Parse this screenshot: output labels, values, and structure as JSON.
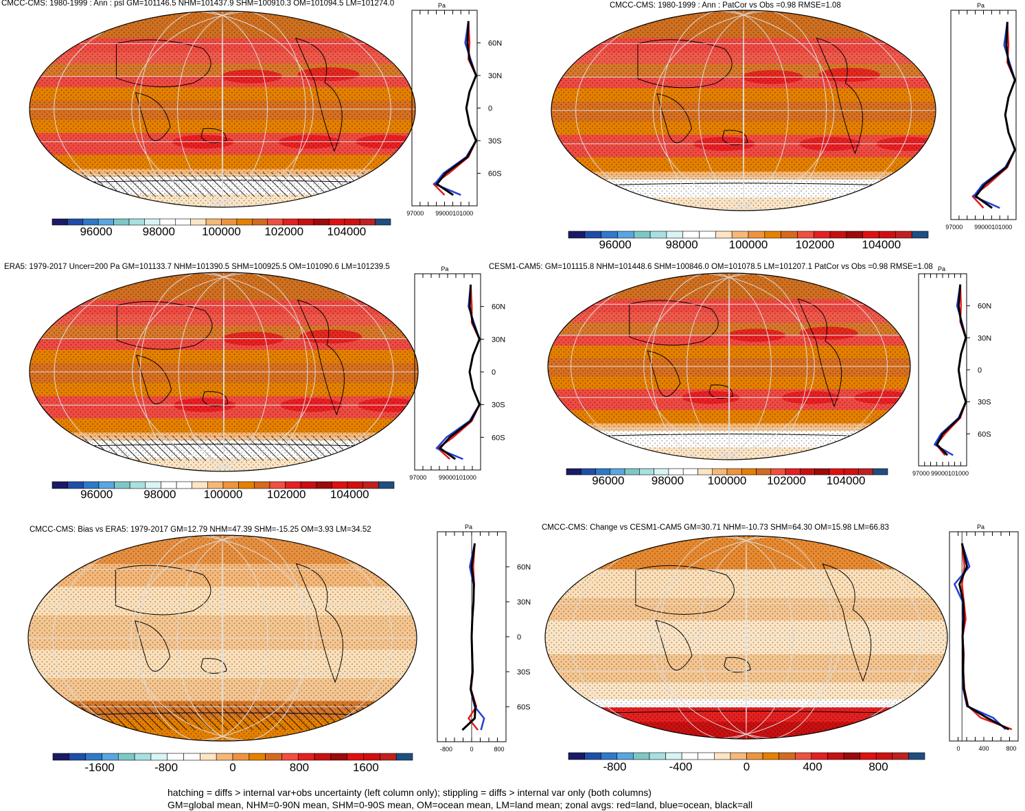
{
  "figure": {
    "footer_line1": "hatching = diffs > internal var+obs uncertainty (left column only); stippling = diffs > internal var only (both columns)",
    "footer_line2": "GM=global mean, NHM=0-90N mean, SHM=0-90S mean, OM=ocean mean, LM=land mean; zonal avgs: red=land, blue=ocean, black=all"
  },
  "colors": {
    "zonal_land": "#e41a1c",
    "zonal_ocean": "#1f3fd8",
    "zonal_all": "#000000",
    "abs_palette": [
      "#1a1a66",
      "#1f4ea8",
      "#2f79c7",
      "#5aa6e0",
      "#7fc7c7",
      "#a8e0e0",
      "#d8f4f4",
      "#ffffff",
      "#ffffff",
      "#fde5c4",
      "#f6b878",
      "#ee9440",
      "#e58000",
      "#d36a20",
      "#f05040",
      "#e52020",
      "#c81010",
      "#9c0a0a",
      "#e01010",
      "#d01010",
      "#c02020",
      "#1f4e80"
    ],
    "diff_palette": [
      "#1a1a66",
      "#1f4ea8",
      "#2f79c7",
      "#5aa6e0",
      "#7fc7c7",
      "#a8e0e0",
      "#d8f4f4",
      "#ffffff",
      "#ffffff",
      "#fde5c4",
      "#f6b878",
      "#ee9440",
      "#e58000",
      "#d36a20",
      "#f05040",
      "#e52020",
      "#c81010",
      "#9c0a0a",
      "#e01010",
      "#d01010",
      "#c02020",
      "#1f4e80"
    ]
  },
  "panels": [
    {
      "title": "CMCC-CMS: 1980-1999 : Ann : psl GM=101146.5 NHM=101437.9 SHM=100910.3 OM=101094.5 LM=101274.0",
      "zonal_unit": "Pa",
      "zonal_xticks": [
        "97000",
        "99000101000"
      ],
      "lat_ticks": [
        "60N",
        "30N",
        "0",
        "30S",
        "60S"
      ],
      "colorbar_labels": [
        "96000",
        "98000",
        "100000",
        "102000",
        "104000"
      ]
    },
    {
      "title": "CMCC-CMS: 1980-1999 : Ann : PatCor vs Obs =0.98 RMSE=1.08",
      "zonal_unit": "Pa",
      "zonal_xticks": [
        "97000",
        "99000101000"
      ],
      "lat_ticks": [],
      "colorbar_labels": [
        "96000",
        "98000",
        "100000",
        "102000",
        "104000"
      ]
    },
    {
      "title": "ERA5: 1979-2017 Uncer=200 Pa GM=101133.7 NHM=101390.5 SHM=100925.5 OM=101090.6 LM=101239.5",
      "zonal_unit": "Pa",
      "zonal_xticks": [
        "97000",
        "99000101000"
      ],
      "lat_ticks": [
        "60N",
        "30N",
        "0",
        "30S",
        "60S"
      ],
      "colorbar_labels": [
        "96000",
        "98000",
        "100000",
        "102000",
        "104000"
      ]
    },
    {
      "title": "CESM1-CAM5: GM=101115.8 NHM=101448.6 SHM=100846.0 OM=101078.5 LM=101207.1 PatCor vs Obs =0.98 RMSE=1.08",
      "zonal_unit": "Pa",
      "zonal_xticks": [
        "97000",
        "99000101000"
      ],
      "lat_ticks": [
        "60N",
        "30N",
        "0",
        "30S",
        "60S"
      ],
      "colorbar_labels": [
        "96000",
        "98000",
        "100000",
        "102000",
        "104000"
      ]
    },
    {
      "title": "CMCC-CMS: Bias vs ERA5: 1979-2017 GM=12.79 NHM=47.39 SHM=-15.25 OM=3.93 LM=34.52",
      "zonal_unit": "Pa",
      "zonal_xticks": [
        "-800",
        "0",
        "800"
      ],
      "lat_ticks": [
        "60N",
        "30N",
        "0",
        "30S",
        "60S"
      ],
      "colorbar_labels": [
        "-1600",
        "-800",
        "0",
        "800",
        "1600"
      ]
    },
    {
      "title": "CMCC-CMS: Change vs CESM1-CAM5 GM=30.71 NHM=-10.73 SHM=64.30 OM=15.98 LM=66.83",
      "zonal_unit": "Pa",
      "zonal_xticks": [
        "0",
        "400",
        "800"
      ],
      "lat_ticks": [],
      "colorbar_labels": [
        "-800",
        "-400",
        "0",
        "400",
        "800"
      ]
    }
  ],
  "chart_data": [
    {
      "type": "heatmap",
      "title": "CMCC-CMS: 1980-1999 : Ann : psl GM=101146.5 NHM=101437.9 SHM=100910.3 OM=101094.5 LM=101274.0",
      "colorbar": {
        "ticks": [
          96000,
          98000,
          100000,
          102000,
          104000
        ],
        "range": [
          94500,
          105500
        ]
      },
      "zonal_mean": {
        "xlabel": "Pa",
        "xlim": [
          96000,
          102000
        ],
        "lat": [
          80,
          60,
          45,
          30,
          15,
          0,
          -15,
          -30,
          -45,
          -60,
          -70,
          -80
        ],
        "series": [
          {
            "name": "land",
            "values": [
              101200,
              101300,
              101200,
              101900,
              101300,
              101000,
              101300,
              101900,
              101200,
              99400,
              98000,
              99000
            ]
          },
          {
            "name": "ocean",
            "values": [
              101200,
              100900,
              101400,
              101900,
              101300,
              101000,
              101300,
              101900,
              101000,
              98900,
              98100,
              100500
            ]
          },
          {
            "name": "all",
            "values": [
              101200,
              101100,
              101300,
              101900,
              101300,
              101000,
              101300,
              101900,
              101100,
              99100,
              98300,
              99800
            ]
          }
        ]
      }
    },
    {
      "type": "heatmap",
      "title": "CMCC-CMS: 1980-1999 : Ann : PatCor vs Obs =0.98 RMSE=1.08",
      "colorbar": {
        "ticks": [
          96000,
          98000,
          100000,
          102000,
          104000
        ],
        "range": [
          94500,
          105500
        ]
      },
      "zonal_mean": {
        "xlabel": "Pa",
        "xlim": [
          96000,
          102000
        ],
        "lat": [
          80,
          60,
          45,
          30,
          15,
          0,
          -15,
          -30,
          -45,
          -60,
          -70,
          -80
        ],
        "series": [
          {
            "name": "land",
            "values": [
              101200,
              101300,
              101200,
              101900,
              101300,
              101000,
              101300,
              101900,
              101200,
              99400,
              98000,
              99000
            ]
          },
          {
            "name": "ocean",
            "values": [
              101200,
              100900,
              101400,
              101900,
              101300,
              101000,
              101300,
              101900,
              101000,
              98900,
              98100,
              100500
            ]
          },
          {
            "name": "all",
            "values": [
              101200,
              101100,
              101300,
              101900,
              101300,
              101000,
              101300,
              101900,
              101100,
              99100,
              98300,
              99800
            ]
          }
        ]
      }
    },
    {
      "type": "heatmap",
      "title": "ERA5: 1979-2017 Uncer=200 Pa GM=101133.7 NHM=101390.5 SHM=100925.5 OM=101090.6 LM=101239.5",
      "colorbar": {
        "ticks": [
          96000,
          98000,
          100000,
          102000,
          104000
        ],
        "range": [
          94500,
          105500
        ]
      },
      "zonal_mean": {
        "xlabel": "Pa",
        "xlim": [
          96000,
          102000
        ],
        "lat": [
          80,
          60,
          45,
          30,
          15,
          0,
          -15,
          -30,
          -45,
          -60,
          -70,
          -80
        ],
        "series": [
          {
            "name": "land",
            "values": [
              101100,
              101200,
              101200,
              101900,
              101300,
              101000,
              101300,
              101900,
              101200,
              99500,
              98100,
              99200
            ]
          },
          {
            "name": "ocean",
            "values": [
              101100,
              100900,
              101400,
              101900,
              101300,
              101000,
              101300,
              101900,
              101000,
              98900,
              98000,
              100400
            ]
          },
          {
            "name": "all",
            "values": [
              101100,
              101000,
              101300,
              101900,
              101300,
              101000,
              101300,
              101900,
              101100,
              99200,
              98300,
              99700
            ]
          }
        ]
      }
    },
    {
      "type": "heatmap",
      "title": "CESM1-CAM5: GM=101115.8 NHM=101448.6 SHM=100846.0 OM=101078.5 LM=101207.1 PatCor vs Obs =0.98 RMSE=1.08",
      "colorbar": {
        "ticks": [
          96000,
          98000,
          100000,
          102000,
          104000
        ],
        "range": [
          94500,
          105500
        ]
      },
      "zonal_mean": {
        "xlabel": "Pa",
        "xlim": [
          96000,
          102000
        ],
        "lat": [
          80,
          60,
          45,
          30,
          15,
          0,
          -15,
          -30,
          -45,
          -60,
          -70,
          -80
        ],
        "series": [
          {
            "name": "land",
            "values": [
              101200,
              101300,
              101200,
              101900,
              101300,
              101000,
              101300,
              101900,
              101200,
              99300,
              98200,
              99300
            ]
          },
          {
            "name": "ocean",
            "values": [
              101200,
              100800,
              101400,
              101900,
              101300,
              101000,
              101300,
              101900,
              101000,
              98800,
              98000,
              100300
            ]
          },
          {
            "name": "all",
            "values": [
              101200,
              101000,
              101300,
              101900,
              101300,
              101000,
              101300,
              101900,
              101100,
              99000,
              98300,
              99600
            ]
          }
        ]
      }
    },
    {
      "type": "heatmap",
      "title": "CMCC-CMS: Bias vs ERA5: 1979-2017 GM=12.79 NHM=47.39 SHM=-15.25 OM=3.93 LM=34.52",
      "colorbar": {
        "ticks": [
          -1600,
          -800,
          0,
          800,
          1600
        ],
        "range": [
          -2300,
          2300
        ]
      },
      "zonal_mean": {
        "xlabel": "Pa",
        "xlim": [
          -1100,
          1100
        ],
        "lat": [
          80,
          60,
          45,
          30,
          15,
          0,
          -15,
          -30,
          -45,
          -60,
          -70,
          -80
        ],
        "series": [
          {
            "name": "land",
            "values": [
              100,
              50,
              80,
              60,
              20,
              0,
              20,
              40,
              -20,
              150,
              -100,
              200
            ]
          },
          {
            "name": "ocean",
            "values": [
              100,
              -60,
              60,
              60,
              20,
              0,
              10,
              20,
              -40,
              100,
              400,
              300
            ]
          },
          {
            "name": "all",
            "values": [
              100,
              0,
              70,
              60,
              20,
              0,
              15,
              30,
              -30,
              120,
              100,
              -300
            ]
          }
        ]
      }
    },
    {
      "type": "heatmap",
      "title": "CMCC-CMS: Change vs CESM1-CAM5 GM=30.71 NHM=-10.73 SHM=64.30 OM=15.98 LM=66.83",
      "colorbar": {
        "ticks": [
          -800,
          -400,
          0,
          400,
          800
        ],
        "range": [
          -1100,
          1100
        ]
      },
      "zonal_mean": {
        "xlabel": "Pa",
        "xlim": [
          -200,
          900
        ],
        "lat": [
          80,
          60,
          45,
          30,
          15,
          0,
          -15,
          -30,
          -45,
          -60,
          -70,
          -80
        ],
        "series": [
          {
            "name": "land",
            "values": [
              0,
              40,
              0,
              30,
              60,
              10,
              30,
              20,
              40,
              100,
              300,
              800
            ]
          },
          {
            "name": "ocean",
            "values": [
              0,
              120,
              -120,
              10,
              20,
              10,
              20,
              20,
              20,
              80,
              500,
              700
            ]
          },
          {
            "name": "all",
            "values": [
              0,
              80,
              -40,
              20,
              30,
              10,
              20,
              20,
              30,
              90,
              400,
              750
            ]
          }
        ]
      }
    }
  ]
}
